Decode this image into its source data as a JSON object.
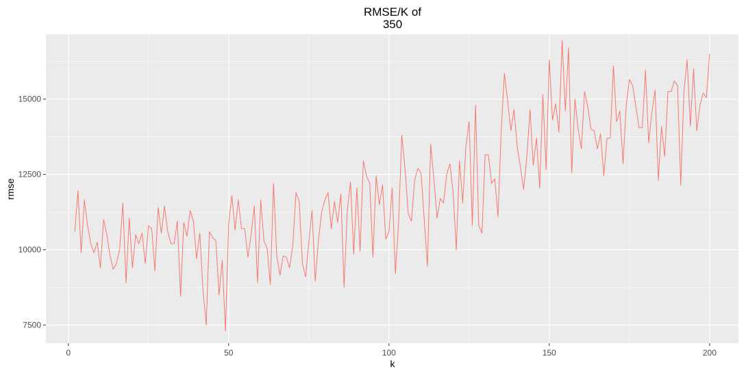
{
  "chart_data": {
    "type": "line",
    "title_lines": [
      "RMSE/K of",
      "350"
    ],
    "xlabel": "k",
    "ylabel": "rmse",
    "xlim": [
      -7,
      209
    ],
    "ylim": [
      6900,
      17150
    ],
    "xticks": [
      0,
      50,
      100,
      150,
      200
    ],
    "yticks": [
      7500,
      10000,
      12500,
      15000
    ],
    "xtick_labels": [
      "0",
      "50",
      "100",
      "150",
      "200"
    ],
    "ytick_labels": [
      "7500",
      "10000",
      "12500",
      "15000"
    ],
    "grid": true,
    "legend": "none",
    "line_color": "#F8766D",
    "panel_color": "#EBEBEB",
    "grid_color": "#FFFFFF",
    "series": [
      {
        "x": [
          2,
          3,
          4,
          5,
          6,
          7,
          8,
          9,
          10,
          11,
          12,
          13,
          14,
          15,
          16,
          17,
          18,
          19,
          20,
          21,
          22,
          23,
          24,
          25,
          26,
          27,
          28,
          29,
          30,
          31,
          32,
          33,
          34,
          35,
          36,
          37,
          38,
          39,
          40,
          41,
          42,
          43,
          44,
          45,
          46,
          47,
          48,
          49,
          50,
          51,
          52,
          53,
          54,
          55,
          56,
          57,
          58,
          59,
          60,
          61,
          62,
          63,
          64,
          65,
          66,
          67,
          68,
          69,
          70,
          71,
          72,
          73,
          74,
          75,
          76,
          77,
          78,
          79,
          80,
          81,
          82,
          83,
          84,
          85,
          86,
          87,
          88,
          89,
          90,
          91,
          92,
          93,
          94,
          95,
          96,
          97,
          98,
          99,
          100,
          101,
          102,
          103,
          104,
          105,
          106,
          107,
          108,
          109,
          110,
          111,
          112,
          113,
          114,
          115,
          116,
          117,
          118,
          119,
          120,
          121,
          122,
          123,
          124,
          125,
          126,
          127,
          128,
          129,
          130,
          131,
          132,
          133,
          134,
          135,
          136,
          137,
          138,
          139,
          140,
          141,
          142,
          143,
          144,
          145,
          146,
          147,
          148,
          149,
          150,
          151,
          152,
          153,
          154,
          155,
          156,
          157,
          158,
          159,
          160,
          161,
          162,
          163,
          164,
          165,
          166,
          167,
          168,
          169,
          170,
          171,
          172,
          173,
          174,
          175,
          176,
          177,
          178,
          179,
          180,
          181,
          182,
          183,
          184,
          185,
          186,
          187,
          188,
          189,
          190,
          191,
          192,
          193,
          194,
          195,
          196,
          197,
          198,
          199,
          200
        ],
        "y": [
          10600,
          11950,
          9900,
          11650,
          10800,
          10200,
          9900,
          10250,
          9400,
          11000,
          10500,
          9800,
          9350,
          9550,
          10000,
          11550,
          8900,
          11050,
          9400,
          10500,
          10200,
          10550,
          9550,
          10800,
          10700,
          9300,
          11400,
          10550,
          11450,
          10600,
          10200,
          10200,
          10950,
          8450,
          10900,
          10450,
          11300,
          10950,
          9700,
          10550,
          8650,
          7500,
          10600,
          10400,
          10300,
          8500,
          9650,
          7300,
          10850,
          11800,
          10650,
          11650,
          10700,
          10700,
          9750,
          10500,
          11450,
          8900,
          11650,
          10300,
          10050,
          8850,
          12200,
          9800,
          9150,
          9800,
          9750,
          9400,
          10150,
          11900,
          11600,
          9550,
          9100,
          10250,
          11300,
          8950,
          10300,
          11250,
          11650,
          11900,
          10700,
          11600,
          10900,
          11850,
          8750,
          11300,
          12250,
          9850,
          12050,
          9950,
          12950,
          12450,
          12200,
          9750,
          12450,
          11500,
          12150,
          10350,
          10600,
          12050,
          9200,
          10900,
          13800,
          12700,
          11200,
          10950,
          12300,
          12700,
          12550,
          11000,
          9450,
          13500,
          12350,
          11050,
          11700,
          11550,
          12500,
          12850,
          11900,
          10000,
          12950,
          11550,
          13450,
          14250,
          10800,
          14800,
          10800,
          10550,
          13150,
          13150,
          12200,
          12350,
          11100,
          13950,
          15850,
          14950,
          13950,
          14650,
          13400,
          12750,
          12000,
          13100,
          14650,
          12800,
          13700,
          12050,
          15150,
          12650,
          16300,
          14300,
          14850,
          13900,
          16950,
          14600,
          16700,
          12550,
          15000,
          14000,
          13350,
          15250,
          14750,
          14000,
          13950,
          13350,
          13850,
          12450,
          13700,
          13700,
          16100,
          14250,
          14600,
          12850,
          14800,
          15650,
          15450,
          14750,
          14050,
          14050,
          15950,
          13550,
          14550,
          15300,
          12300,
          14100,
          13100,
          15250,
          15250,
          15600,
          15450,
          12150,
          15250,
          16300,
          14100,
          16000,
          13950,
          14800,
          15200,
          15050,
          16500
        ]
      }
    ]
  }
}
